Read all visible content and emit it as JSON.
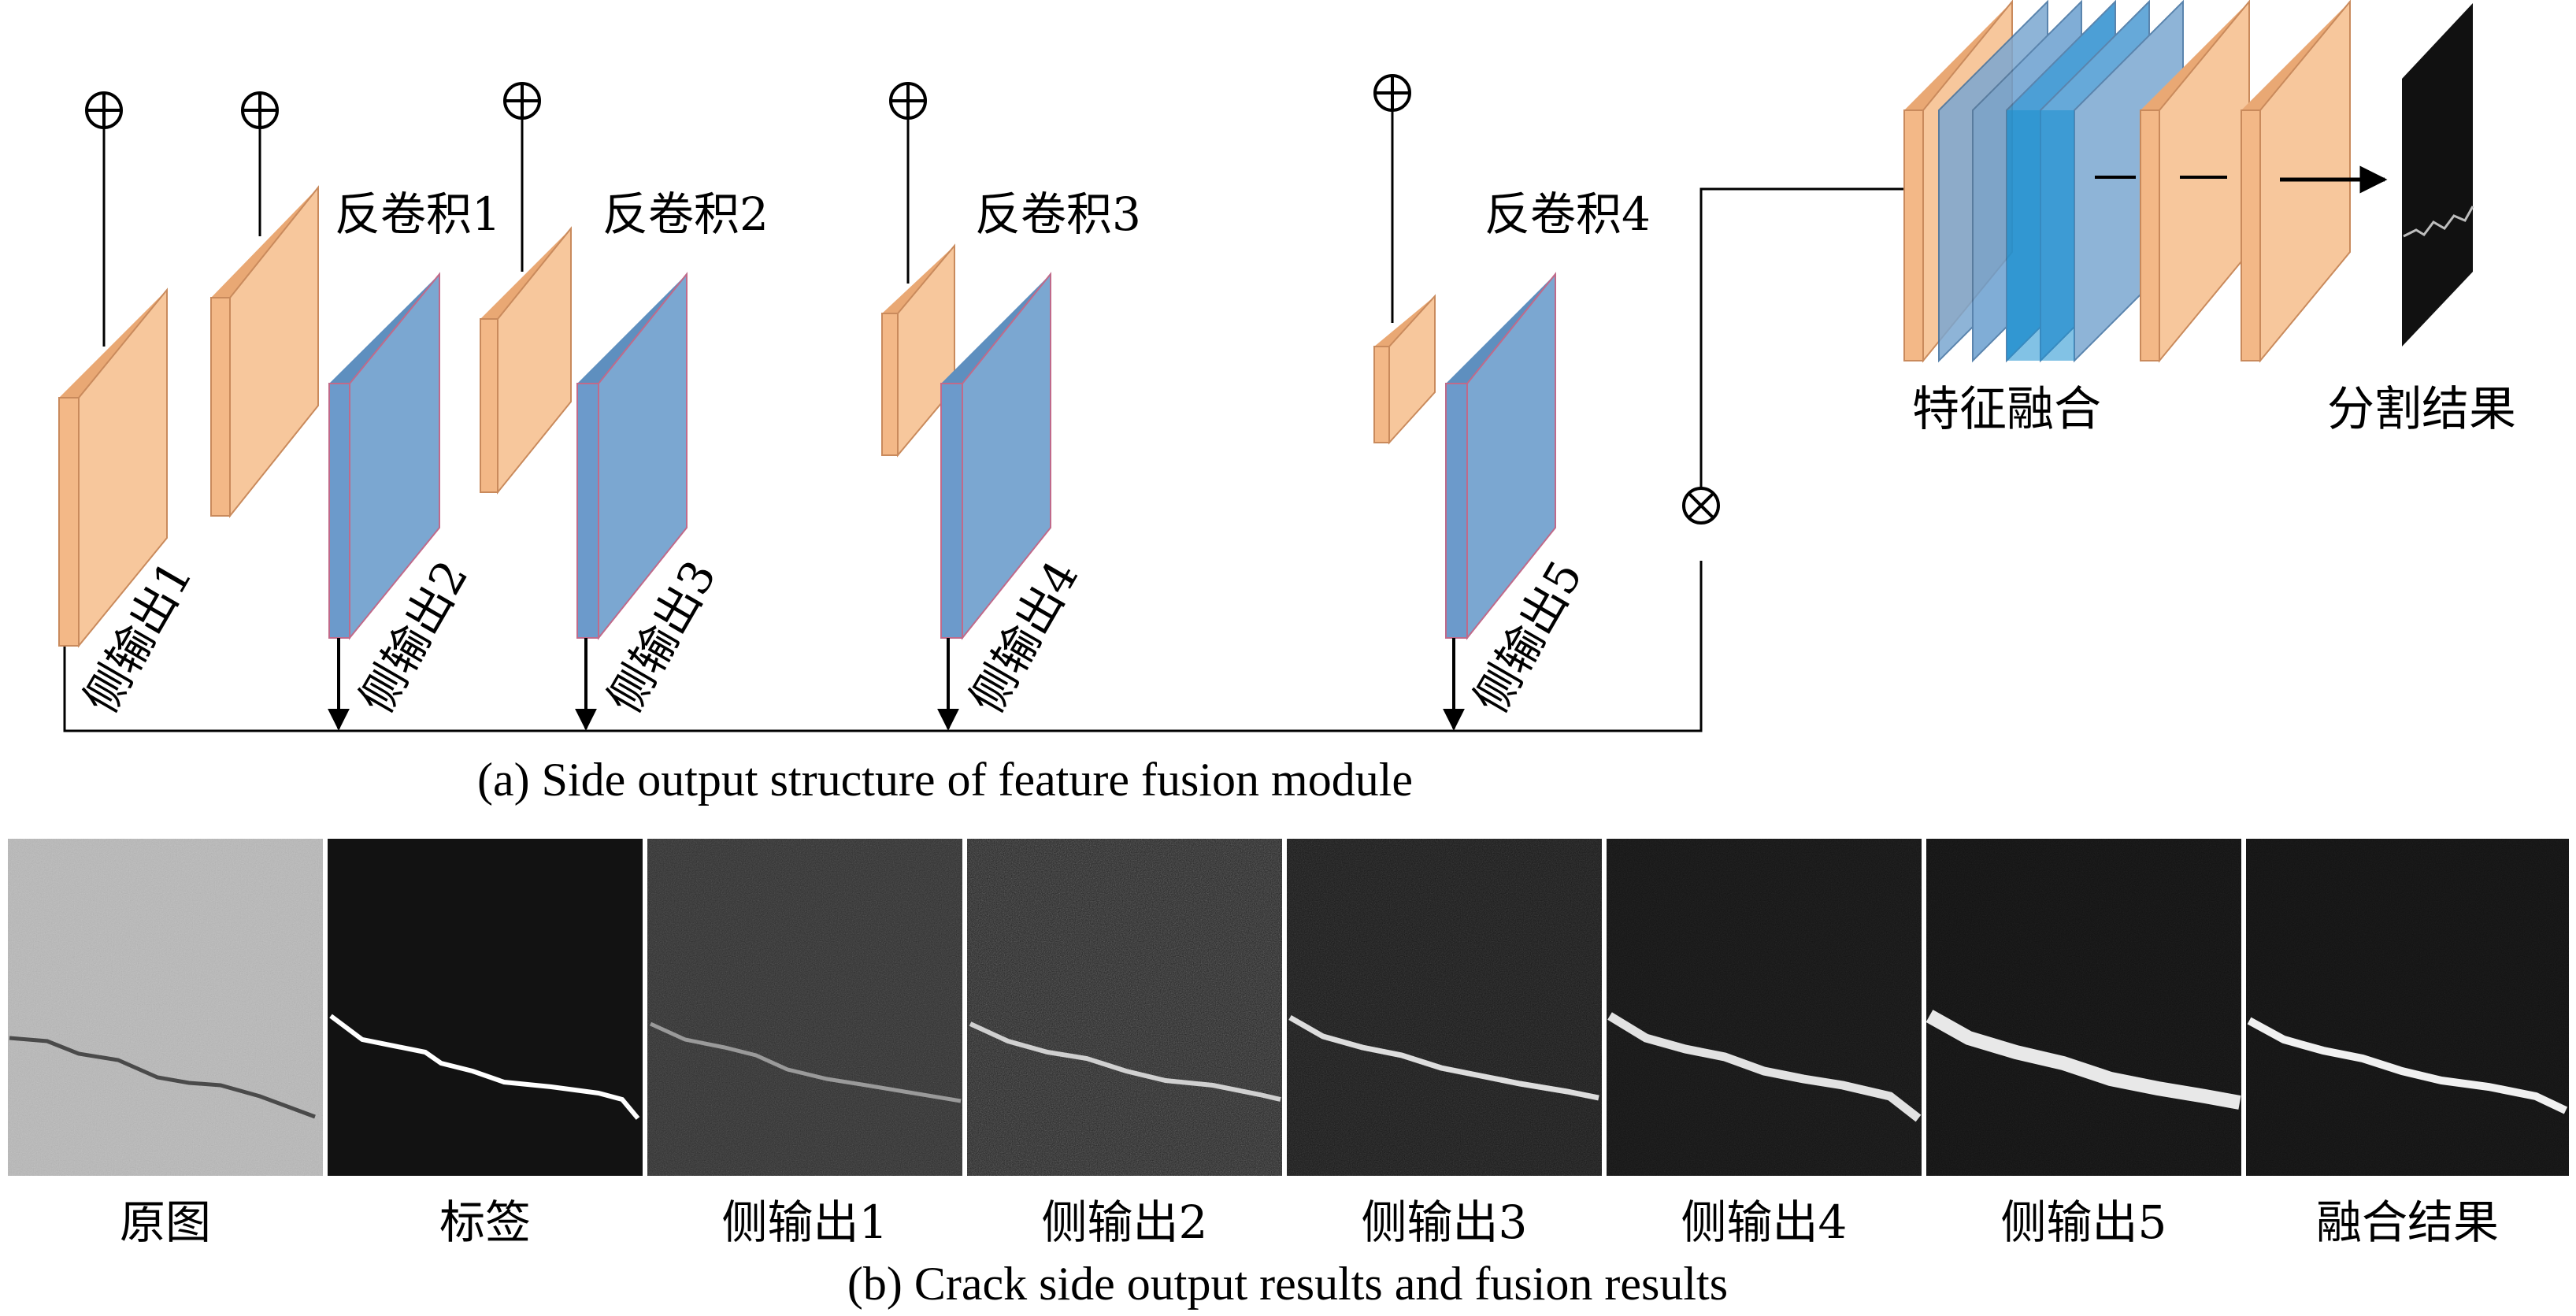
{
  "part_a": {
    "caption": "(a) Side output structure of feature fusion module",
    "side_outputs": [
      "侧输出1",
      "侧输出2",
      "侧输出3",
      "侧输出4",
      "侧输出5"
    ],
    "deconvs": [
      "反卷积1",
      "反卷积2",
      "反卷积3",
      "反卷积4"
    ],
    "fusion_label": "特征融合",
    "result_label": "分割结果",
    "add_symbol": "⊕",
    "multiply_symbol": "⊗"
  },
  "part_b": {
    "caption": "(b) Crack side output results and fusion results",
    "images": [
      "原图",
      "标签",
      "侧输出1",
      "侧输出2",
      "侧输出3",
      "侧输出4",
      "侧输出5",
      "融合结果"
    ]
  },
  "colors": {
    "orange_face": "#f7c79c",
    "orange_side": "#e9a874",
    "blue_face": "#7ba7d1",
    "blue_side": "#5e8fbf",
    "fusion_blue": "#1c8fcf"
  }
}
